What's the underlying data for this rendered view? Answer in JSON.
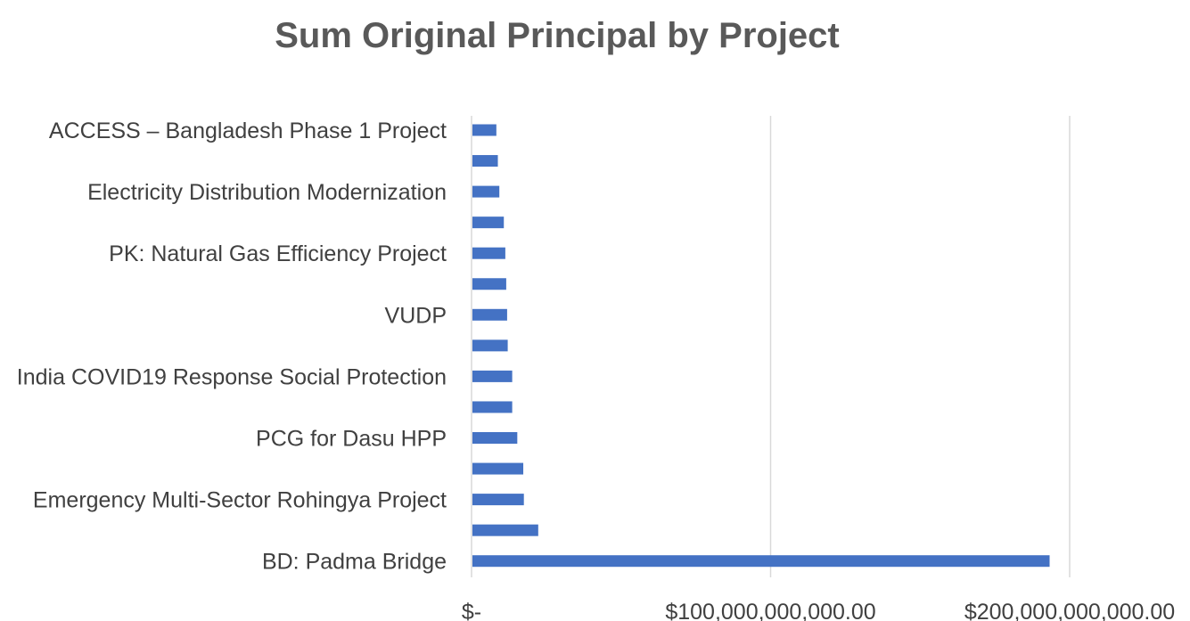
{
  "chart_data": {
    "type": "bar",
    "orientation": "horizontal",
    "title": "Sum Original Principal by Project",
    "xlabel": "",
    "ylabel": "",
    "categories": [
      "ACCESS – Bangladesh Phase 1 Project",
      "",
      "Electricity Distribution Modernization",
      "",
      "PK: Natural Gas Efficiency Project",
      "",
      "VUDP",
      "",
      "India COVID19 Response Social Protection",
      "",
      "PCG for Dasu HPP",
      "",
      "Emergency Multi-Sector Rohingya Project",
      "",
      "BD: Padma Bridge"
    ],
    "values": [
      8000000000,
      8500000000,
      9000000000,
      10500000000,
      11000000000,
      11300000000,
      11600000000,
      11800000000,
      13300000000,
      13300000000,
      15000000000,
      17000000000,
      17200000000,
      22000000000,
      193000000000
    ],
    "xlim": [
      0,
      200000000000
    ],
    "x_ticks": [
      0,
      100000000000,
      200000000000
    ],
    "x_tick_labels": [
      "$-",
      "$100,000,000,000.00",
      "$200,000,000,000.00"
    ],
    "grid": true,
    "legend": "none",
    "bar_color": "#4472C4",
    "grid_color": "#D9D9D9"
  }
}
